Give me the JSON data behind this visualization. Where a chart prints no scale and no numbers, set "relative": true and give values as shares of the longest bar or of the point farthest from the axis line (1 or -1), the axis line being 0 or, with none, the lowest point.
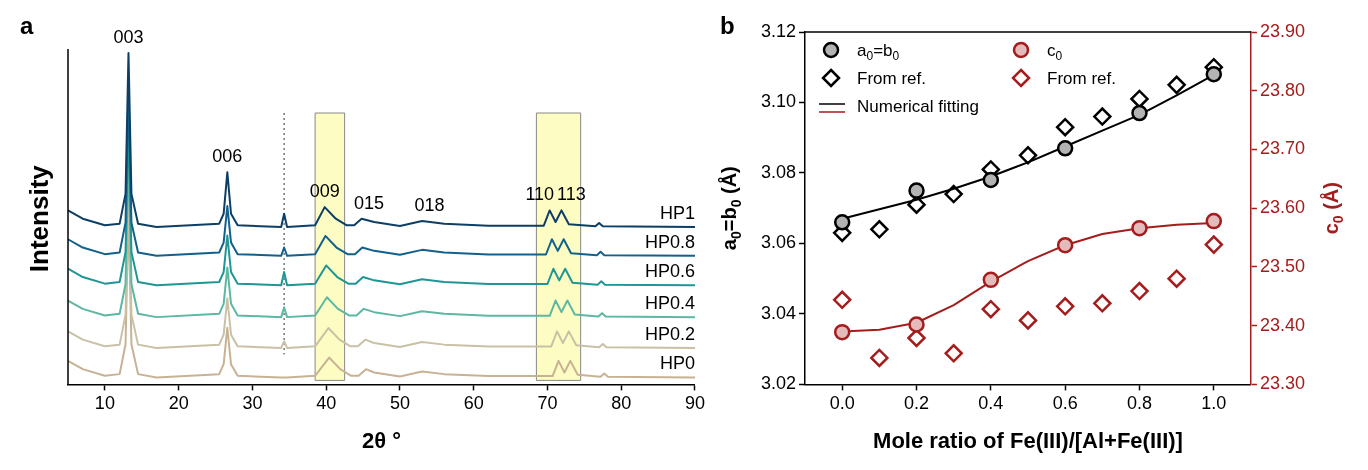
{
  "chart_data": [
    {
      "type": "line",
      "title": "a",
      "xlabel": "2θ °",
      "ylabel": "Intensity",
      "relative": true,
      "xlim": [
        5,
        90
      ],
      "xticks": [
        10,
        20,
        30,
        40,
        50,
        60,
        70,
        80,
        90
      ],
      "tick_labels": "x",
      "grid": false,
      "legend": false,
      "marker": "none",
      "line_style": "solid",
      "series": [
        {
          "name": "HP1",
          "color": "#0d3f66",
          "x": [
            5,
            7,
            10,
            12,
            12.8,
            13.2,
            13.6,
            14.5,
            17,
            25.5,
            26.1,
            26.6,
            27.1,
            28,
            33.9,
            34.3,
            34.7,
            38.5,
            39.8,
            41.3,
            42.8,
            43.8,
            44.8,
            46.5,
            50,
            53,
            56,
            62,
            69.5,
            70.3,
            71.1,
            71.9,
            72.9,
            76.5,
            77,
            77.5,
            90
          ],
          "values": [
            0.525,
            0.5,
            0.48,
            0.485,
            0.575,
            1.0,
            0.575,
            0.485,
            0.475,
            0.485,
            0.515,
            0.64,
            0.515,
            0.48,
            0.475,
            0.515,
            0.475,
            0.48,
            0.535,
            0.5,
            0.48,
            0.48,
            0.5,
            0.49,
            0.478,
            0.493,
            0.485,
            0.479,
            0.479,
            0.525,
            0.49,
            0.525,
            0.483,
            0.477,
            0.487,
            0.477,
            0.475
          ]
        },
        {
          "name": "HP0.8",
          "color": "#13608a",
          "x": [
            5,
            7,
            10,
            12,
            12.8,
            13.2,
            13.6,
            14.5,
            17,
            25.5,
            26.1,
            26.6,
            27.1,
            28,
            33.9,
            34.3,
            34.7,
            38.5,
            39.9,
            41.4,
            42.9,
            43.9,
            44.9,
            46.5,
            50,
            53,
            56,
            62,
            69.8,
            70.6,
            71.4,
            72.2,
            73.2,
            76.7,
            77.2,
            77.7,
            90
          ],
          "values": [
            0.438,
            0.413,
            0.393,
            0.398,
            0.488,
            0.888,
            0.488,
            0.398,
            0.388,
            0.398,
            0.428,
            0.538,
            0.428,
            0.393,
            0.388,
            0.413,
            0.388,
            0.393,
            0.448,
            0.413,
            0.393,
            0.393,
            0.413,
            0.403,
            0.391,
            0.406,
            0.398,
            0.392,
            0.392,
            0.438,
            0.403,
            0.438,
            0.396,
            0.39,
            0.4,
            0.39,
            0.388
          ]
        },
        {
          "name": "HP0.6",
          "color": "#1f9695",
          "x": [
            5,
            7,
            10,
            12,
            12.8,
            13.2,
            13.6,
            14.5,
            17,
            25.5,
            26.1,
            26.6,
            27.1,
            28,
            33.9,
            34.3,
            34.7,
            38.5,
            40,
            41.5,
            43,
            44,
            45,
            46.5,
            50,
            53,
            56,
            62,
            70,
            70.8,
            71.6,
            72.4,
            73.4,
            76.8,
            77.3,
            77.8,
            90
          ],
          "values": [
            0.349,
            0.324,
            0.304,
            0.309,
            0.399,
            0.799,
            0.399,
            0.309,
            0.299,
            0.309,
            0.339,
            0.449,
            0.339,
            0.304,
            0.299,
            0.339,
            0.299,
            0.304,
            0.359,
            0.324,
            0.304,
            0.304,
            0.324,
            0.314,
            0.302,
            0.317,
            0.309,
            0.303,
            0.303,
            0.349,
            0.314,
            0.349,
            0.307,
            0.301,
            0.311,
            0.301,
            0.299
          ]
        },
        {
          "name": "HP0.4",
          "color": "#5cb8a3",
          "x": [
            5,
            7,
            10,
            12,
            12.8,
            13.2,
            13.6,
            14.5,
            17,
            25.5,
            26.1,
            26.6,
            27.1,
            28,
            33.9,
            34.3,
            34.7,
            38.5,
            40.1,
            41.6,
            43.1,
            44.1,
            45.1,
            46.5,
            50,
            53,
            56,
            62,
            70.3,
            71.1,
            71.9,
            72.7,
            73.7,
            76.9,
            77.4,
            77.9,
            90
          ],
          "values": [
            0.253,
            0.228,
            0.208,
            0.213,
            0.303,
            0.703,
            0.303,
            0.213,
            0.203,
            0.213,
            0.243,
            0.353,
            0.243,
            0.208,
            0.203,
            0.233,
            0.203,
            0.208,
            0.263,
            0.228,
            0.208,
            0.208,
            0.228,
            0.218,
            0.206,
            0.221,
            0.213,
            0.207,
            0.207,
            0.253,
            0.218,
            0.253,
            0.211,
            0.205,
            0.215,
            0.205,
            0.203
          ]
        },
        {
          "name": "HP0.2",
          "color": "#c9c1a6",
          "x": [
            5,
            7,
            10,
            12,
            12.8,
            13.2,
            13.6,
            14.5,
            17,
            25.5,
            26.1,
            26.6,
            27.1,
            28,
            33.9,
            34.3,
            34.7,
            38.5,
            40.3,
            41.8,
            43.3,
            44.3,
            45.3,
            46.5,
            50,
            53,
            56,
            62,
            70.5,
            71.3,
            72.1,
            72.9,
            73.9,
            77,
            77.5,
            78,
            90
          ],
          "values": [
            0.16,
            0.135,
            0.115,
            0.12,
            0.21,
            0.61,
            0.21,
            0.12,
            0.11,
            0.12,
            0.15,
            0.26,
            0.15,
            0.115,
            0.11,
            0.13,
            0.11,
            0.115,
            0.17,
            0.135,
            0.115,
            0.115,
            0.135,
            0.125,
            0.113,
            0.128,
            0.12,
            0.114,
            0.114,
            0.16,
            0.125,
            0.16,
            0.118,
            0.112,
            0.122,
            0.112,
            0.11
          ]
        },
        {
          "name": "HP0",
          "color": "#c8b294",
          "x": [
            5,
            7,
            10,
            12,
            12.8,
            13.2,
            13.6,
            14.5,
            17,
            25.5,
            26.1,
            26.6,
            27.1,
            28,
            33.9,
            34.3,
            34.7,
            38.5,
            40.4,
            41.9,
            43.4,
            44.4,
            45.4,
            46.5,
            50,
            53,
            56,
            62,
            70.7,
            71.5,
            72.3,
            73.1,
            74.1,
            77.2,
            77.7,
            78.2,
            90
          ],
          "values": [
            0.071,
            0.046,
            0.026,
            0.031,
            0.121,
            0.521,
            0.121,
            0.031,
            0.021,
            0.031,
            0.061,
            0.171,
            0.061,
            0.026,
            0.021,
            0.021,
            0.021,
            0.026,
            0.081,
            0.046,
            0.026,
            0.026,
            0.046,
            0.036,
            0.024,
            0.039,
            0.031,
            0.025,
            0.025,
            0.071,
            0.036,
            0.071,
            0.029,
            0.023,
            0.033,
            0.023,
            0.021
          ]
        }
      ],
      "bands": [
        {
          "axis": "x",
          "from": 38.5,
          "to": 42.5,
          "color": "#fdfdc3"
        },
        {
          "axis": "x",
          "from": 68.5,
          "to": 74.5,
          "color": "#fdfdc3"
        }
      ],
      "ref_lines": [
        {
          "axis": "x",
          "value": 34.3,
          "color": "#555555",
          "line_style": "dotted"
        }
      ],
      "annotations": [
        {
          "text": "003",
          "x": 13.2,
          "y": 1.0
        },
        {
          "text": "006",
          "x": 26.6,
          "y": 0.64
        },
        {
          "text": "009",
          "x": 39.8,
          "y": 0.535
        },
        {
          "text": "015",
          "x": 45.8,
          "y": 0.5
        },
        {
          "text": "018",
          "x": 54,
          "y": 0.493
        },
        {
          "text": "110",
          "x": 70.3,
          "y": 0.525
        },
        {
          "text": "113",
          "x": 71.9,
          "y": 0.525
        }
      ]
    },
    {
      "type": "scatter",
      "title": "b",
      "xlabel": "Mole ratio of Fe(III)/[Al+Fe(III)]",
      "ylabel": "a$_{0}$=b$_{0}$ (Å)",
      "y2label": "c$_{0}$ (Å)",
      "xlim": [
        -0.1,
        1.1
      ],
      "xticks": [
        {
          "value": 0,
          "label": "0.0"
        },
        0.2,
        0.4,
        0.6,
        0.8,
        {
          "value": 1,
          "label": "1.0"
        }
      ],
      "ylim": [
        3.02,
        3.12
      ],
      "yticks": [
        3.02,
        3.04,
        3.06,
        3.08,
        {
          "value": 3.1,
          "label": "3.10"
        },
        3.12
      ],
      "y2lim": [
        23.3,
        23.9
      ],
      "y2ticks": [
        {
          "value": 23.3,
          "label": "23.30"
        },
        {
          "value": 23.4,
          "label": "23.40"
        },
        {
          "value": 23.5,
          "label": "23.50"
        },
        {
          "value": 23.6,
          "label": "23.60"
        },
        {
          "value": 23.7,
          "label": "23.70"
        },
        {
          "value": 23.8,
          "label": "23.80"
        },
        {
          "value": 23.9,
          "label": "23.90"
        }
      ],
      "grid": false,
      "legend": "top left",
      "series": [
        {
          "name": "a$_{0}$=b$_{0}$",
          "type": "scatter",
          "marker": "circle",
          "color": "#000000",
          "x": [
            0,
            0.2,
            0.4,
            0.6,
            0.8,
            1.0
          ],
          "values": [
            3.066,
            3.075,
            3.078,
            3.087,
            3.097,
            3.108
          ]
        },
        {
          "name": "From ref.",
          "type": "scatter",
          "marker": "diamond",
          "color": "#000000",
          "x": [
            0,
            0.1,
            0.2,
            0.3,
            0.4,
            0.5,
            0.6,
            0.7,
            0.8,
            0.9,
            1.0
          ],
          "values": [
            3.063,
            3.064,
            3.071,
            3.074,
            3.081,
            3.085,
            3.093,
            3.096,
            3.101,
            3.105,
            3.11
          ]
        },
        {
          "name": "c$_{0}$",
          "type": "scatter",
          "marker": "circle",
          "color": "#a51c1c",
          "axis": "y2",
          "x": [
            0,
            0.2,
            0.4,
            0.6,
            0.8,
            1.0
          ],
          "values": [
            23.389,
            23.402,
            23.478,
            23.537,
            23.566,
            23.578
          ]
        },
        {
          "name": "From ref.",
          "type": "scatter",
          "marker": "diamond",
          "color": "#a51c1c",
          "axis": "y2",
          "x": [
            0,
            0.1,
            0.2,
            0.3,
            0.4,
            0.5,
            0.6,
            0.7,
            0.8,
            0.9,
            1.0
          ],
          "values": [
            23.444,
            23.345,
            23.379,
            23.353,
            23.428,
            23.409,
            23.433,
            23.438,
            23.459,
            23.48,
            23.538
          ]
        },
        {
          "name": "Numerical fitting",
          "type": "line",
          "marker": "none",
          "color": "#000000",
          "x": [
            0,
            0.1,
            0.2,
            0.3,
            0.4,
            0.5,
            0.6,
            0.7,
            0.8,
            0.9,
            1.0
          ],
          "values": [
            3.067,
            3.0697,
            3.0724,
            3.0755,
            3.079,
            3.083,
            3.0875,
            3.092,
            3.0965,
            3.102,
            3.1078
          ]
        },
        {
          "type": "line",
          "marker": "none",
          "color": "#a51c1c",
          "axis": "y2",
          "x": [
            0,
            0.1,
            0.2,
            0.3,
            0.4,
            0.5,
            0.6,
            0.7,
            0.8,
            0.9,
            1.0
          ],
          "values": [
            23.39,
            23.393,
            23.405,
            23.435,
            23.475,
            23.51,
            23.537,
            23.556,
            23.566,
            23.572,
            23.575
          ]
        }
      ]
    }
  ]
}
